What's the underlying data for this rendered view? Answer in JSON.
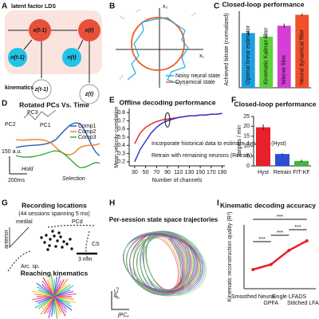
{
  "panel_labels": [
    "A",
    "B",
    "C",
    "D",
    "E",
    "F",
    "G",
    "H",
    "I"
  ],
  "panel_a": {
    "title": "latent factor LDS",
    "nodes": [
      "x(t-1)",
      "x(t)",
      "n(t-1)",
      "n(t)",
      "z(t-1)",
      "z(t)"
    ],
    "kinematics_label": "kinematics"
  },
  "panel_b": {
    "axis_labels": [
      "x₂",
      "x₁"
    ],
    "legend": [
      "Noisy neural state",
      "Dynamical state"
    ]
  },
  "panel_d": {
    "title": "Rotated PCs Vs. Time",
    "pc_labels": [
      "PC3",
      "PC2",
      "PC1"
    ],
    "legend": [
      "Comp1",
      "Comp2",
      "Comp3"
    ],
    "scale_y": "150 a.u.",
    "scale_x": "200ms",
    "epochs": [
      "Hold",
      "Selection"
    ]
  },
  "panel_g": {
    "title": "Recording locations",
    "subtitle": "(44 sessions spanning 5 mo)",
    "labels": [
      "medial",
      "anterior",
      "PCd",
      "CS",
      "Arc. sp.",
      "3 mm"
    ],
    "bottom_title": "Reaching kinematics"
  },
  "panel_h": {
    "title": "Per-session state space trajectories",
    "axis_labels": [
      "jPC₁",
      "jPC₂"
    ]
  },
  "chart_data": [
    {
      "type": "bar",
      "title": "Closed-loop performance",
      "ylabel": "Achieved bitrate (normalized)",
      "categories": [
        "Optimal linear estimator",
        "Kinematic Kalman filter",
        "Wiener filter",
        "Neural dynamical filter"
      ],
      "values": [
        0.75,
        0.7,
        0.85,
        1.0
      ],
      "errors": [
        0.03,
        0.03,
        0.03,
        0.02
      ],
      "colors": [
        "#1f9fe0",
        "#5fd13a",
        "#d43fd6",
        "#f0502a"
      ],
      "ylim": [
        0,
        1.05
      ]
    },
    {
      "type": "line",
      "title": "Offline decoding performance",
      "xlabel": "Number of channels",
      "ylabel": "Mean velocity correlation",
      "x": [
        30,
        40,
        50,
        60,
        70,
        80,
        90,
        100,
        110,
        120,
        130,
        140,
        150,
        160,
        170,
        180,
        190
      ],
      "series": [
        {
          "color": "#e8202a",
          "values": [
            0.42,
            0.55,
            0.62,
            0.66,
            0.69,
            0.71,
            0.72,
            0.73,
            0.74,
            0.75,
            0.76,
            0.76,
            0.77,
            0.77,
            0.78,
            0.78,
            0.79
          ]
        },
        {
          "color": "#2b2bd0",
          "values": [
            0.2,
            0.35,
            0.45,
            0.55,
            0.62,
            0.67,
            0.7,
            0.72,
            0.74,
            0.75,
            0.76,
            0.76,
            0.77,
            0.77,
            0.78,
            0.78,
            0.79
          ]
        }
      ],
      "annotations": [
        "Incorporate historical data to estimate dynamics (Hyst)",
        "Retrain with remaining neurons (Retrain)"
      ],
      "xlim": [
        20,
        195
      ],
      "ylim": [
        0.15,
        0.85
      ],
      "xticks": [
        30,
        50,
        70,
        90,
        110,
        130,
        150,
        170,
        190
      ],
      "yticks": [
        0.2,
        0.3,
        0.4,
        0.5,
        0.6,
        0.7,
        0.8
      ]
    },
    {
      "type": "bar",
      "title": "Closed-loop performance",
      "ylabel": "Targets / min",
      "categories": [
        "Hyst",
        "Retrain",
        "FIT-KF"
      ],
      "values": [
        19.5,
        6,
        2.5
      ],
      "errors": [
        1.5,
        0.4,
        0.6
      ],
      "colors": [
        "#e8202a",
        "#2b4fd0",
        "#3cb83c"
      ],
      "ylim": [
        0,
        25
      ],
      "yticks": [
        0,
        5,
        10,
        15,
        20,
        25
      ]
    },
    {
      "type": "line",
      "title": "Kinematic decoding accuracy",
      "ylabel": "Kinematic reconstruction quality (R²)",
      "categories": [
        "Smoothed Neural",
        "GPFA",
        "Single LFADS",
        "Stitched LFADS"
      ],
      "values": [
        0.3,
        0.38,
        0.6,
        0.75
      ],
      "color": "#e8202a",
      "ylim": [
        0,
        1
      ],
      "significance": [
        "***",
        "***",
        "***",
        "***"
      ]
    }
  ]
}
